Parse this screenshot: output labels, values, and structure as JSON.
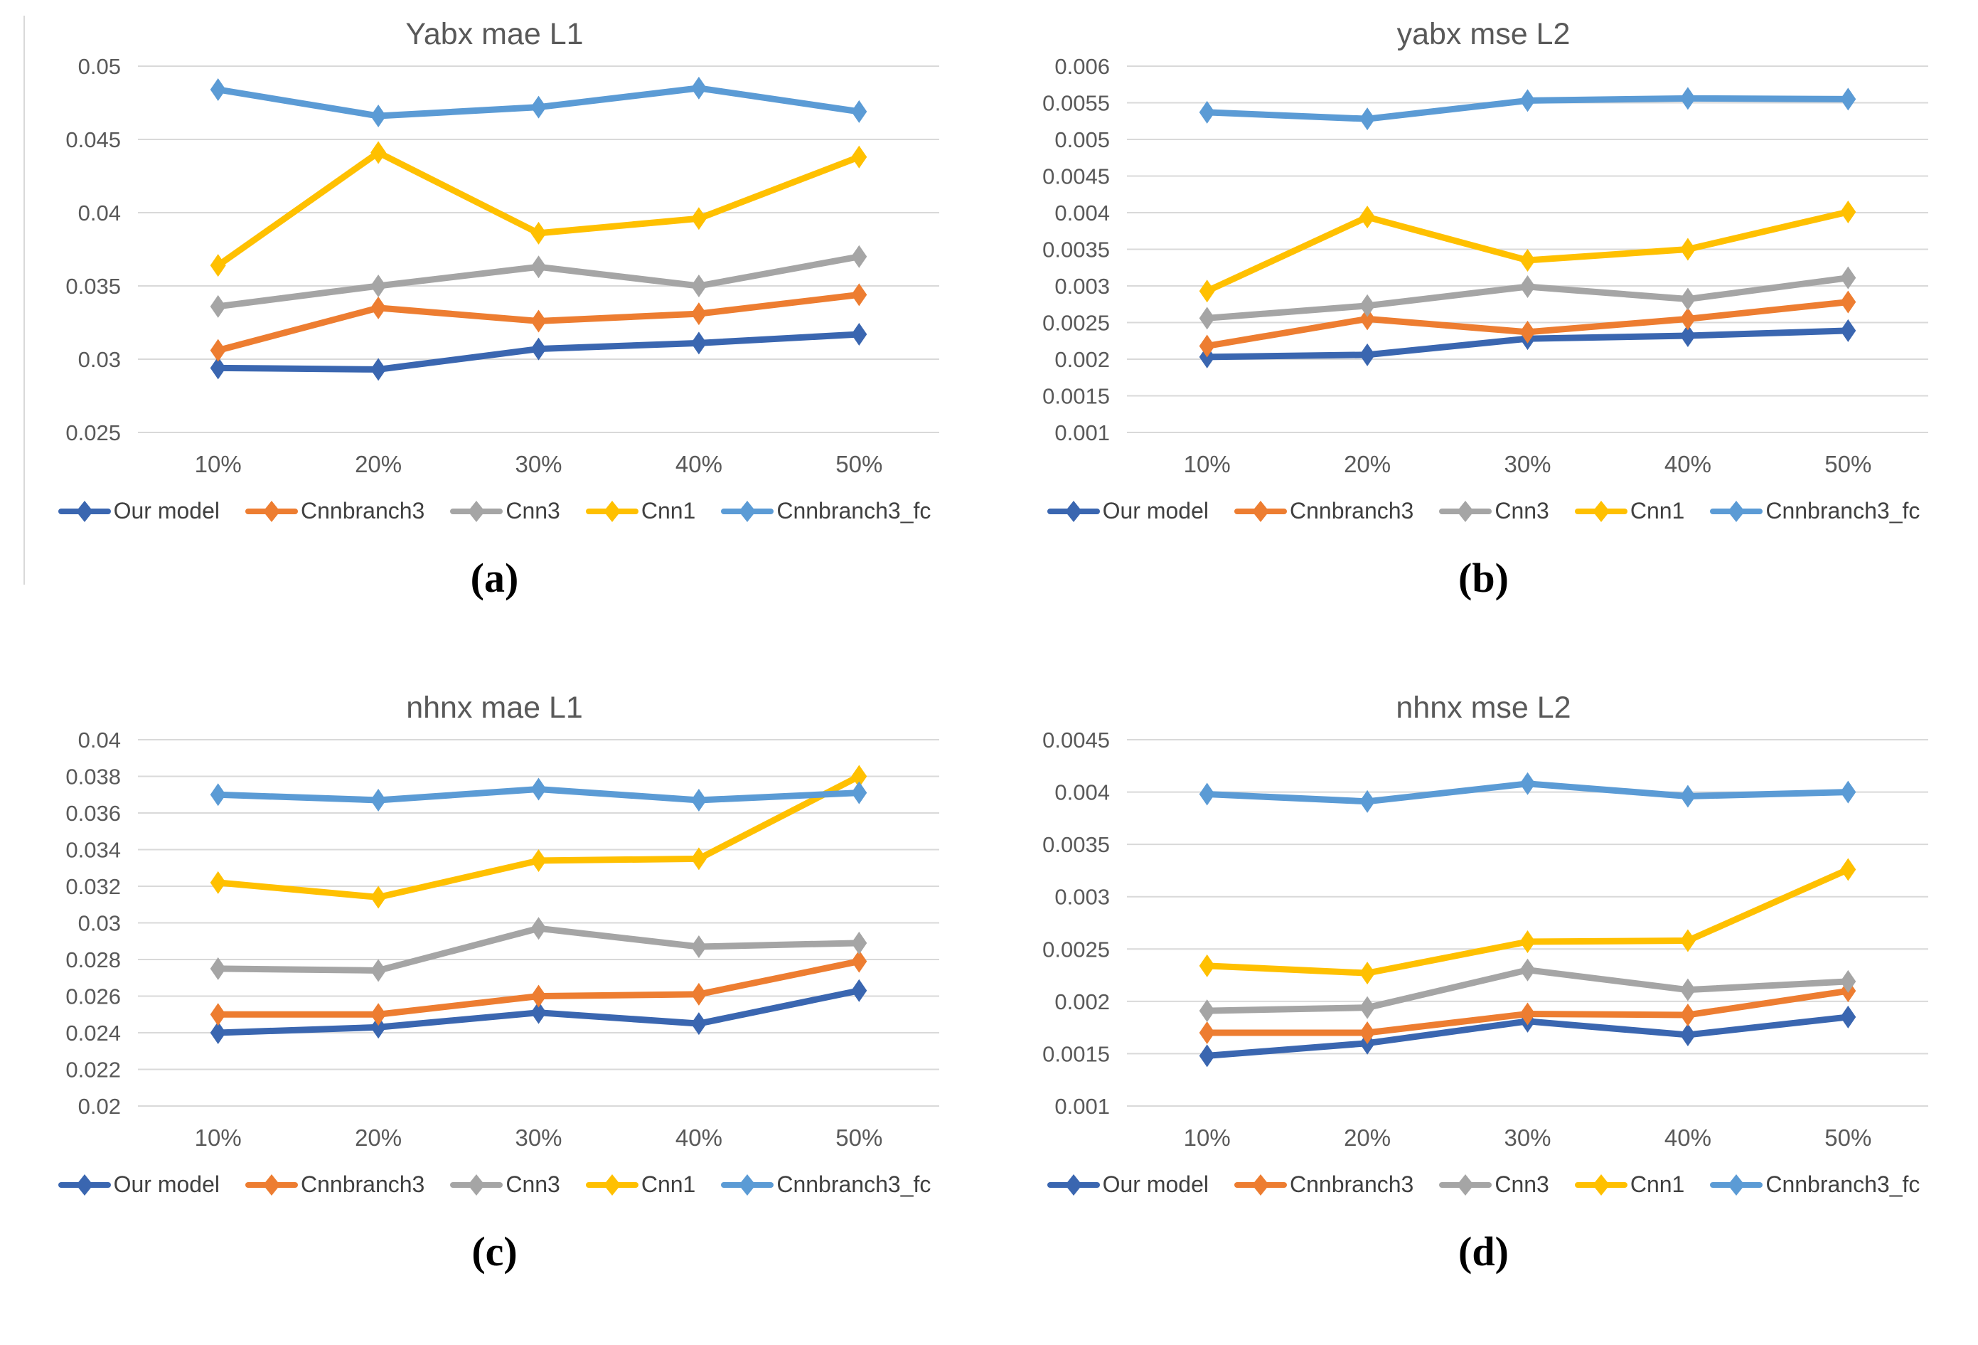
{
  "colors": {
    "our_model": "#3A66B0",
    "cnnbranch3": "#ED7D31",
    "cnn3": "#A5A5A5",
    "cnn1": "#FFC000",
    "cnnbranch3_fc": "#5B9BD5",
    "title_text": "#595959",
    "axis_text": "#595959",
    "gridline": "#D9D9D9",
    "caption_text": "#000000"
  },
  "chart_data": [
    {
      "type": "line",
      "title": "Yabx mae L1",
      "caption": "(a)",
      "xlabel": "",
      "ylabel": "",
      "grid": true,
      "legend_position": "bottom",
      "categories": [
        "10%",
        "20%",
        "30%",
        "40%",
        "50%"
      ],
      "ylim": [
        0.025,
        0.05
      ],
      "y_ticks": [
        0.025,
        0.03,
        0.035,
        0.04,
        0.045,
        0.05
      ],
      "y_tick_labels": [
        "0.025",
        "0.03",
        "0.035",
        "0.04",
        "0.045",
        "0.05"
      ],
      "series": [
        {
          "name": "Our model",
          "slug": "our-model",
          "color": "#3A66B0",
          "values": [
            0.0294,
            0.0293,
            0.0307,
            0.0311,
            0.0317
          ]
        },
        {
          "name": "Cnnbranch3",
          "slug": "cnnbranch3",
          "color": "#ED7D31",
          "values": [
            0.0306,
            0.0335,
            0.0326,
            0.0331,
            0.0344
          ]
        },
        {
          "name": "Cnn3",
          "slug": "cnn3",
          "color": "#A5A5A5",
          "values": [
            0.0336,
            0.035,
            0.0363,
            0.035,
            0.037
          ]
        },
        {
          "name": "Cnn1",
          "slug": "cnn1",
          "color": "#FFC000",
          "values": [
            0.0364,
            0.0441,
            0.0386,
            0.0396,
            0.0438
          ]
        },
        {
          "name": "Cnnbranch3_fc",
          "slug": "cnnbranch3-fc",
          "color": "#5B9BD5",
          "values": [
            0.0484,
            0.0466,
            0.0472,
            0.0485,
            0.0469
          ]
        }
      ]
    },
    {
      "type": "line",
      "title": "yabx mse L2",
      "caption": "(b)",
      "xlabel": "",
      "ylabel": "",
      "grid": true,
      "legend_position": "bottom",
      "categories": [
        "10%",
        "20%",
        "30%",
        "40%",
        "50%"
      ],
      "ylim": [
        0.001,
        0.006
      ],
      "y_ticks": [
        0.001,
        0.0015,
        0.002,
        0.0025,
        0.003,
        0.0035,
        0.004,
        0.0045,
        0.005,
        0.0055,
        0.006
      ],
      "y_tick_labels": [
        "0.001",
        "0.0015",
        "0.002",
        "0.0025",
        "0.003",
        "0.0035",
        "0.004",
        "0.0045",
        "0.005",
        "0.0055",
        "0.006"
      ],
      "series": [
        {
          "name": "Our model",
          "slug": "our-model",
          "color": "#3A66B0",
          "values": [
            0.00203,
            0.00206,
            0.00228,
            0.00232,
            0.00239
          ]
        },
        {
          "name": "Cnnbranch3",
          "slug": "cnnbranch3",
          "color": "#ED7D31",
          "values": [
            0.00218,
            0.00255,
            0.00237,
            0.00255,
            0.00278
          ]
        },
        {
          "name": "Cnn3",
          "slug": "cnn3",
          "color": "#A5A5A5",
          "values": [
            0.00256,
            0.00273,
            0.00299,
            0.00282,
            0.00311
          ]
        },
        {
          "name": "Cnn1",
          "slug": "cnn1",
          "color": "#FFC000",
          "values": [
            0.00293,
            0.00394,
            0.00335,
            0.0035,
            0.00401
          ]
        },
        {
          "name": "Cnnbranch3_fc",
          "slug": "cnnbranch3-fc",
          "color": "#5B9BD5",
          "values": [
            0.00537,
            0.00528,
            0.00553,
            0.00556,
            0.00555
          ]
        }
      ]
    },
    {
      "type": "line",
      "title": "nhnx mae L1",
      "caption": "(c)",
      "xlabel": "",
      "ylabel": "",
      "grid": true,
      "legend_position": "bottom",
      "categories": [
        "10%",
        "20%",
        "30%",
        "40%",
        "50%"
      ],
      "ylim": [
        0.02,
        0.04
      ],
      "y_ticks": [
        0.02,
        0.022,
        0.024,
        0.026,
        0.028,
        0.03,
        0.032,
        0.034,
        0.036,
        0.038,
        0.04
      ],
      "y_tick_labels": [
        "0.02",
        "0.022",
        "0.024",
        "0.026",
        "0.028",
        "0.03",
        "0.032",
        "0.034",
        "0.036",
        "0.038",
        "0.04"
      ],
      "series": [
        {
          "name": "Our model",
          "slug": "our-model",
          "color": "#3A66B0",
          "values": [
            0.024,
            0.0243,
            0.0251,
            0.0245,
            0.0263
          ]
        },
        {
          "name": "Cnnbranch3",
          "slug": "cnnbranch3",
          "color": "#ED7D31",
          "values": [
            0.025,
            0.025,
            0.026,
            0.0261,
            0.0279
          ]
        },
        {
          "name": "Cnn3",
          "slug": "cnn3",
          "color": "#A5A5A5",
          "values": [
            0.0275,
            0.0274,
            0.0297,
            0.0287,
            0.0289
          ]
        },
        {
          "name": "Cnn1",
          "slug": "cnn1",
          "color": "#FFC000",
          "values": [
            0.0322,
            0.0314,
            0.0334,
            0.0335,
            0.038
          ]
        },
        {
          "name": "Cnnbranch3_fc",
          "slug": "cnnbranch3-fc",
          "color": "#5B9BD5",
          "values": [
            0.037,
            0.0367,
            0.0373,
            0.0367,
            0.0371
          ]
        }
      ]
    },
    {
      "type": "line",
      "title": "nhnx mse L2",
      "caption": "(d)",
      "xlabel": "",
      "ylabel": "",
      "grid": true,
      "legend_position": "bottom",
      "categories": [
        "10%",
        "20%",
        "30%",
        "40%",
        "50%"
      ],
      "ylim": [
        0.001,
        0.0045
      ],
      "y_ticks": [
        0.001,
        0.0015,
        0.002,
        0.0025,
        0.003,
        0.0035,
        0.004,
        0.0045
      ],
      "y_tick_labels": [
        "0.001",
        "0.0015",
        "0.002",
        "0.0025",
        "0.003",
        "0.0035",
        "0.004",
        "0.0045"
      ],
      "series": [
        {
          "name": "Our model",
          "slug": "our-model",
          "color": "#3A66B0",
          "values": [
            0.00148,
            0.0016,
            0.00181,
            0.00168,
            0.00185
          ]
        },
        {
          "name": "Cnnbranch3",
          "slug": "cnnbranch3",
          "color": "#ED7D31",
          "values": [
            0.0017,
            0.0017,
            0.00188,
            0.00187,
            0.0021
          ]
        },
        {
          "name": "Cnn3",
          "slug": "cnn3",
          "color": "#A5A5A5",
          "values": [
            0.00191,
            0.00194,
            0.0023,
            0.00211,
            0.00219
          ]
        },
        {
          "name": "Cnn1",
          "slug": "cnn1",
          "color": "#FFC000",
          "values": [
            0.00234,
            0.00227,
            0.00257,
            0.00258,
            0.00326
          ]
        },
        {
          "name": "Cnnbranch3_fc",
          "slug": "cnnbranch3-fc",
          "color": "#5B9BD5",
          "values": [
            0.00398,
            0.00391,
            0.00408,
            0.00396,
            0.004
          ]
        }
      ]
    }
  ]
}
